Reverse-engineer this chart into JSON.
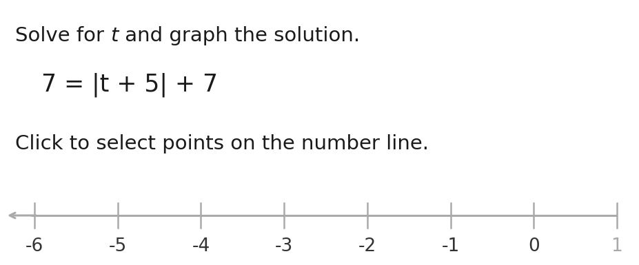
{
  "title_prefix": "Solve for ",
  "title_var": "t",
  "title_suffix": " and graph the solution.",
  "equation": "7 = |t + 5| + 7",
  "subtitle": "Click to select points on the number line.",
  "tick_positions": [
    -6,
    -5,
    -4,
    -3,
    -2,
    -1,
    0,
    1
  ],
  "tick_labels": [
    "-6",
    "-5",
    "-4",
    "-3",
    "-2",
    "-1",
    "0",
    "1"
  ],
  "background_color": "#ffffff",
  "text_color": "#1a1a1a",
  "line_color": "#aaaaaa",
  "tick_color": "#aaaaaa",
  "label_color_normal": "#333333",
  "label_color_faded": "#aaaaaa",
  "font_size_title": 21,
  "font_size_equation": 25,
  "font_size_subtitle": 21,
  "font_size_ticks": 19,
  "fig_width": 9.27,
  "fig_height": 3.85
}
